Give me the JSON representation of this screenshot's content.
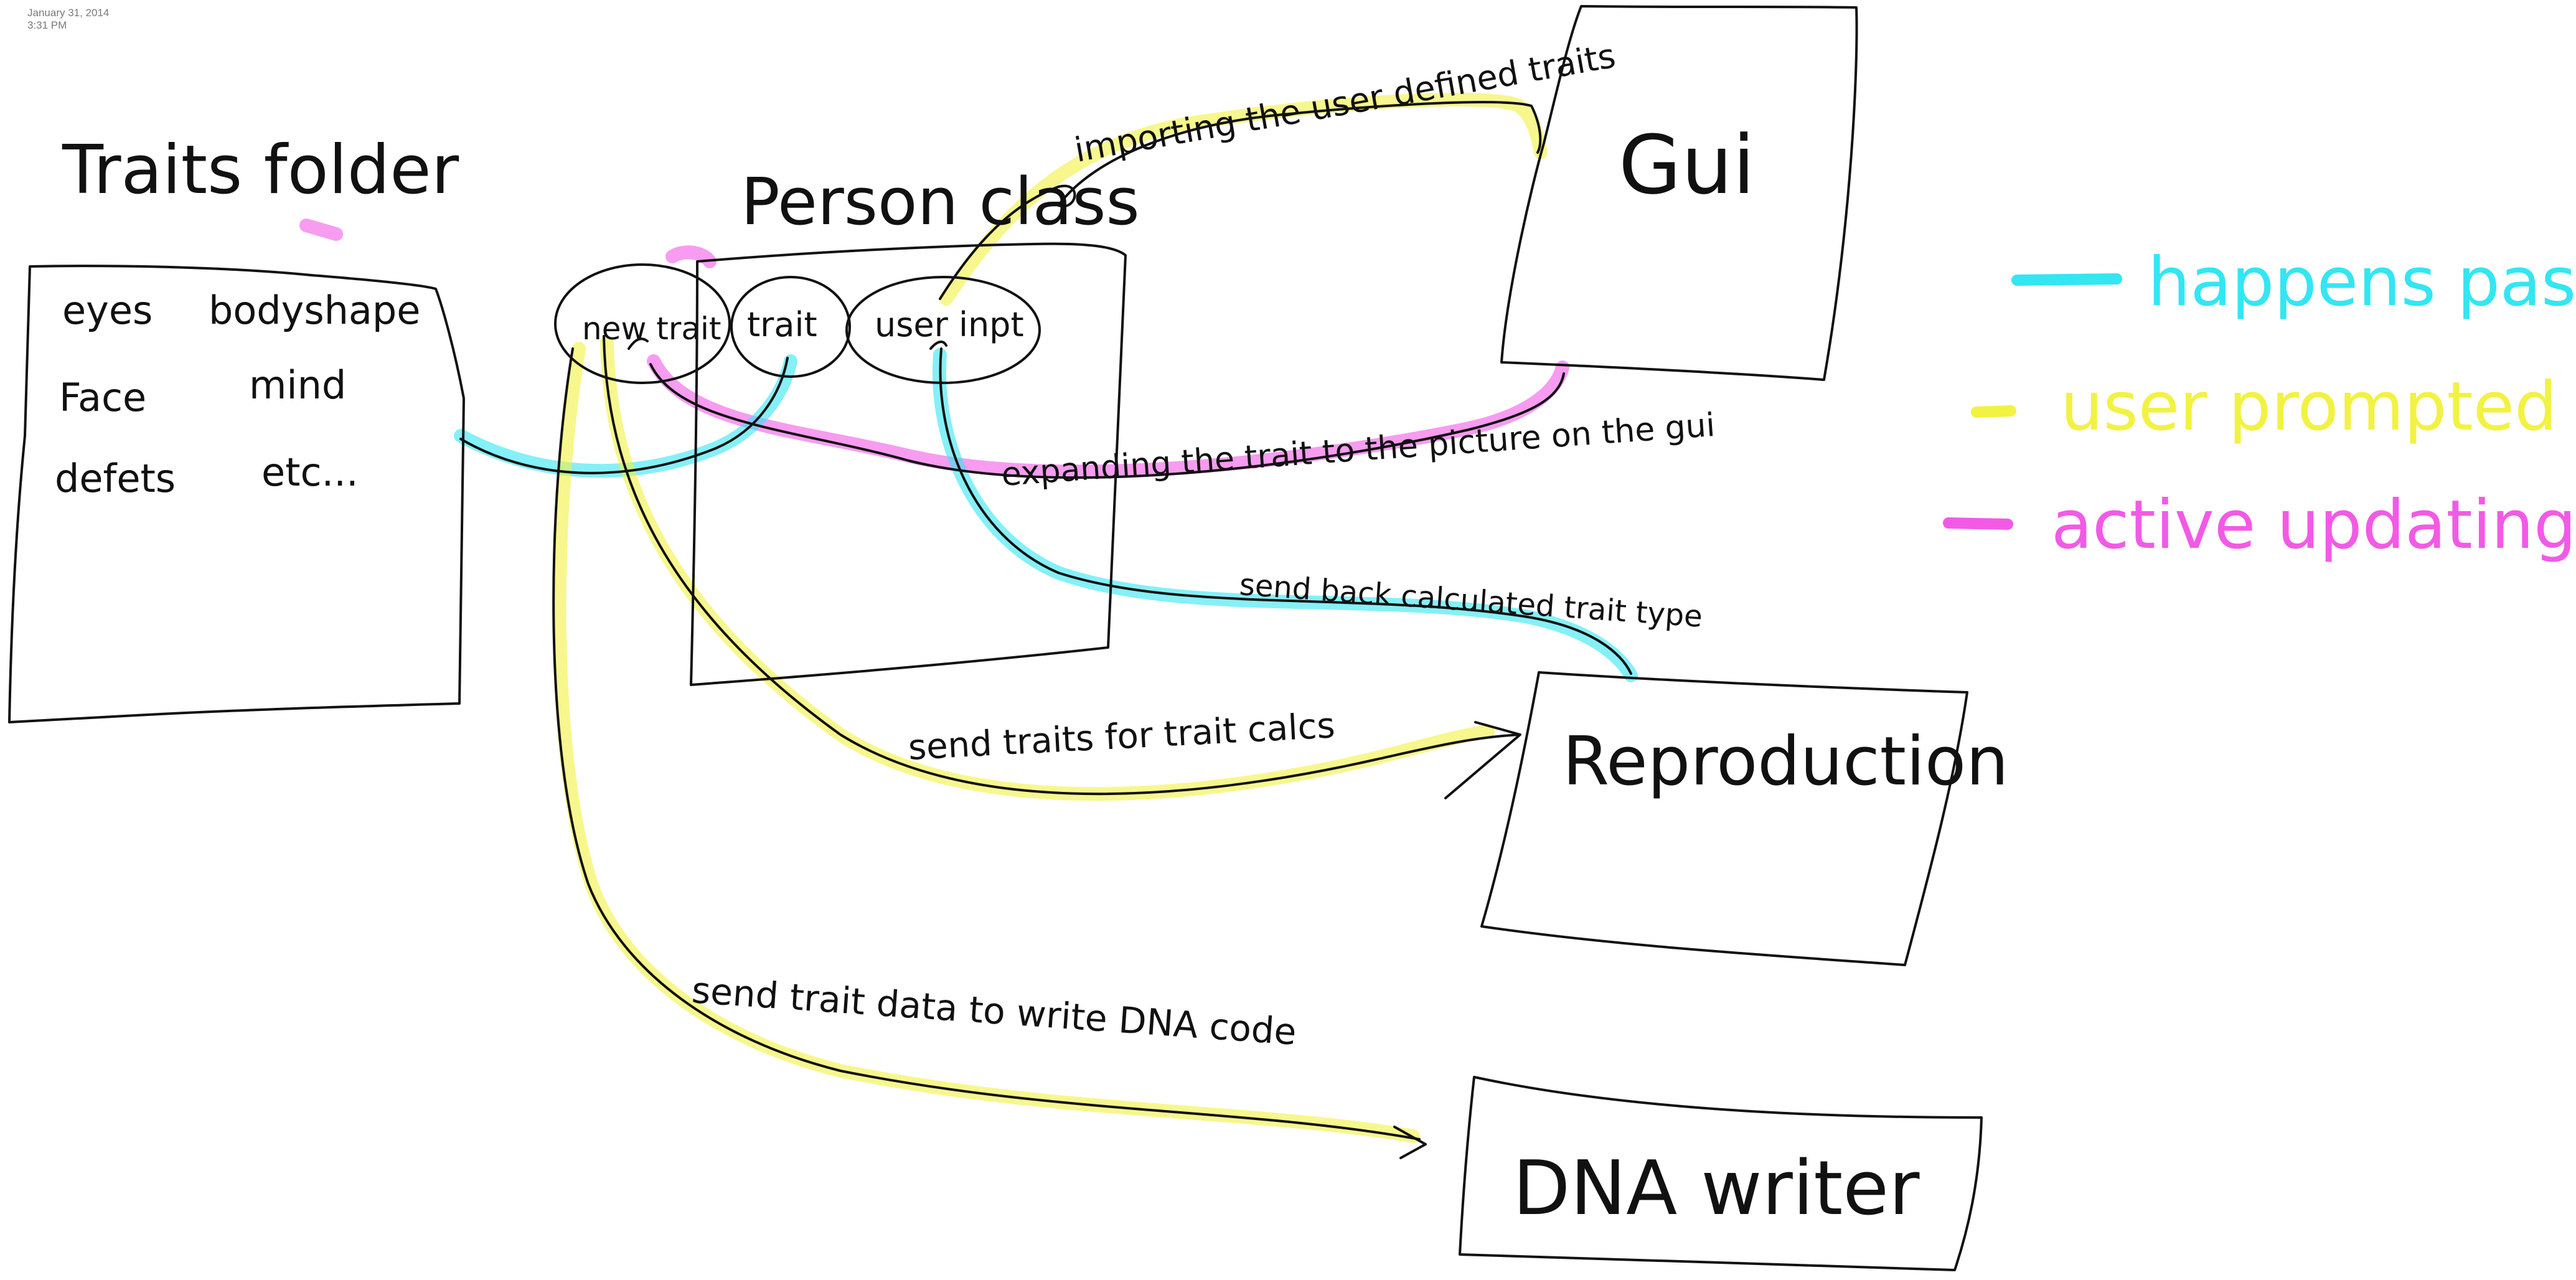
{
  "timestamp": {
    "date": "January 31, 2014",
    "time": "3:31 PM"
  },
  "colors": {
    "passive": "#33e6f2",
    "user_prompted": "#f2f243",
    "active": "#f25ae6",
    "ink": "#111111"
  },
  "boxes": {
    "traits_folder": {
      "title": "Traits folder",
      "items": [
        "eyes",
        "bodyshape",
        "Face",
        "mind",
        "defets",
        "etc..."
      ]
    },
    "person_class": {
      "title": "Person class",
      "ellipses": [
        "new trait",
        "trait",
        "user inpt"
      ]
    },
    "gui": {
      "label": "Gui"
    },
    "reproduction": {
      "label": "Reproduction"
    },
    "dna_writer": {
      "label": "DNA writer"
    }
  },
  "annotations": {
    "importing": "importing the user defined traits",
    "expanding": "expanding the trait to the picture on the gui",
    "send_back": "send back calculated trait type",
    "send_traits": "send traits for trait calcs",
    "send_trait_data": "send trait data to write DNA code"
  },
  "legend": [
    {
      "label": "happens passive",
      "color_key": "passive"
    },
    {
      "label": "user prompted",
      "color_key": "user_prompted"
    },
    {
      "label": "active updating",
      "color_key": "active"
    }
  ]
}
